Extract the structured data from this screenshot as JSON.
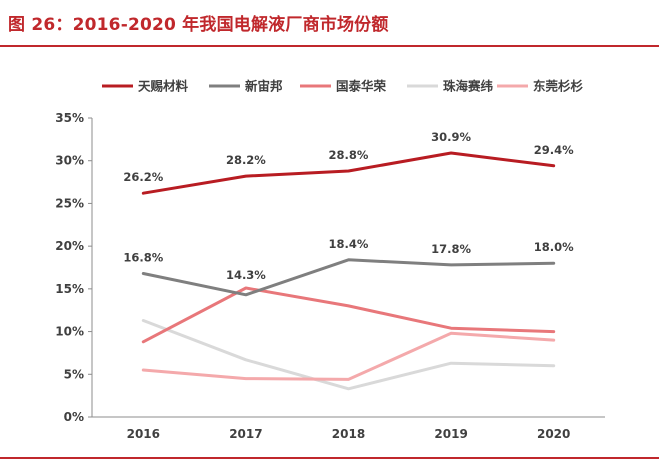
{
  "title": "图 26：2016-2020 年我国电解液厂商市场份额",
  "chart_data": {
    "type": "line",
    "title": "图 26：2016-2020 年我国电解液厂商市场份额",
    "xlabel": "",
    "ylabel": "",
    "x": [
      "2016",
      "2017",
      "2018",
      "2019",
      "2020"
    ],
    "ylim": [
      0,
      35
    ],
    "yticks": [
      "0%",
      "5%",
      "10%",
      "15%",
      "20%",
      "25%",
      "30%",
      "35%"
    ],
    "grid": false,
    "legend_position": "top",
    "series": [
      {
        "name": "天赐材料",
        "color": "#b81c22",
        "values": [
          26.2,
          28.2,
          28.8,
          30.9,
          29.4
        ],
        "labels": [
          "26.2%",
          "28.2%",
          "28.8%",
          "30.9%",
          "29.4%"
        ]
      },
      {
        "name": "新宙邦",
        "color": "#7f7f7f",
        "values": [
          16.8,
          14.3,
          18.4,
          17.8,
          18.0
        ],
        "labels": [
          "16.8%",
          "14.3%",
          "18.4%",
          "17.8%",
          "18.0%"
        ]
      },
      {
        "name": "国泰华荣",
        "color": "#e8777a",
        "values": [
          8.8,
          15.1,
          13.0,
          10.4,
          10.0
        ]
      },
      {
        "name": "珠海赛纬",
        "color": "#d9d9d9",
        "values": [
          11.3,
          6.7,
          3.3,
          6.3,
          6.0
        ]
      },
      {
        "name": "东莞杉杉",
        "color": "#f4a9ab",
        "values": [
          5.5,
          4.5,
          4.4,
          9.8,
          9.0
        ]
      }
    ]
  }
}
